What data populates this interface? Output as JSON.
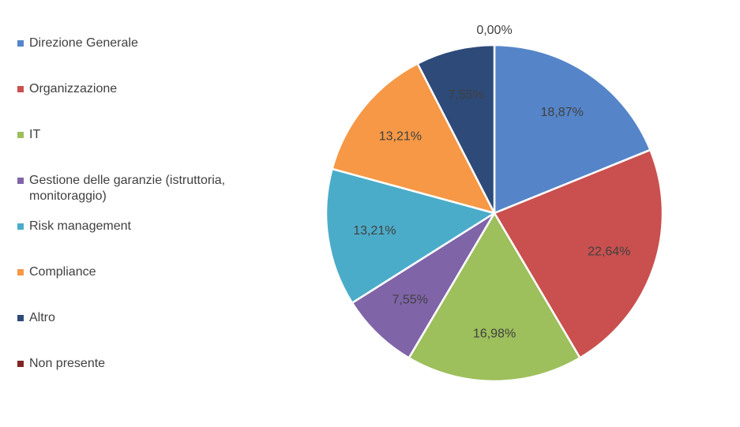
{
  "chart_data": {
    "type": "pie",
    "categories": [
      "Direzione Generale",
      "Organizzazione",
      "IT",
      "Gestione delle garanzie (istruttoria, monitoraggio)",
      "Risk management",
      "Compliance",
      "Altro",
      "Non presente"
    ],
    "values": [
      18.87,
      22.64,
      16.98,
      7.55,
      13.21,
      13.21,
      7.55,
      0.0
    ],
    "value_labels": [
      "18,87%",
      "22,64%",
      "16,98%",
      "7,55%",
      "13,21%",
      "13,21%",
      "7,55%",
      "0,00%"
    ],
    "colors": [
      "#5585C8",
      "#C9504F",
      "#9DBF5C",
      "#8064A8",
      "#4BACC9",
      "#F69845",
      "#2E4A78",
      "#7F2625"
    ],
    "legend_position": "left"
  }
}
